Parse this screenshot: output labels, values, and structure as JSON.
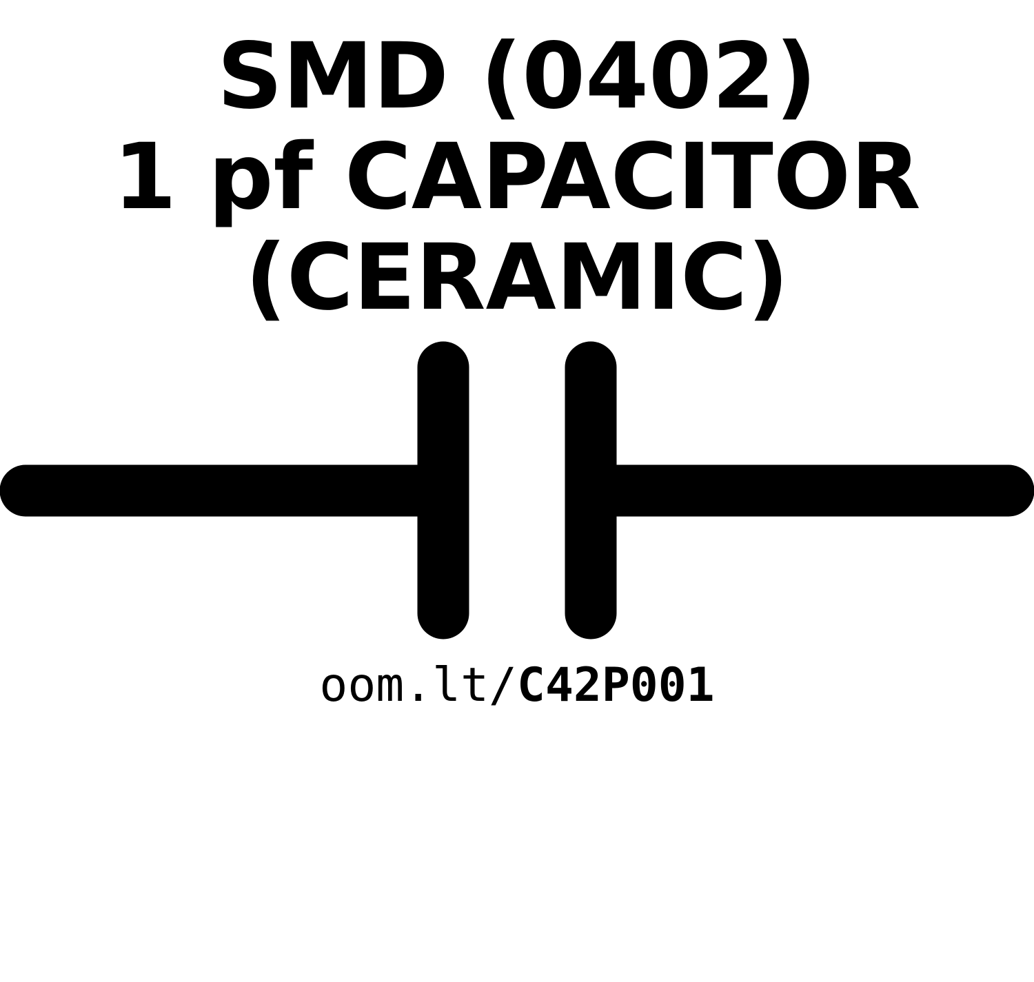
{
  "title": {
    "line1": "SMD (0402)",
    "line2": "1 pf CAPACITOR",
    "line3": "(CERAMIC)"
  },
  "link": {
    "prefix": "oom.lt/",
    "code": "C42P001"
  },
  "symbol": {
    "name": "capacitor-icon",
    "color": "#000000"
  }
}
